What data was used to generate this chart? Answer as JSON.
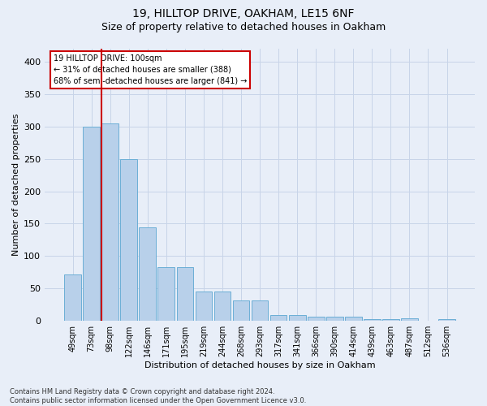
{
  "title1": "19, HILLTOP DRIVE, OAKHAM, LE15 6NF",
  "title2": "Size of property relative to detached houses in Oakham",
  "xlabel": "Distribution of detached houses by size in Oakham",
  "ylabel": "Number of detached properties",
  "footnote": "Contains HM Land Registry data © Crown copyright and database right 2024.\nContains public sector information licensed under the Open Government Licence v3.0.",
  "categories": [
    "49sqm",
    "73sqm",
    "98sqm",
    "122sqm",
    "146sqm",
    "171sqm",
    "195sqm",
    "219sqm",
    "244sqm",
    "268sqm",
    "293sqm",
    "317sqm",
    "341sqm",
    "366sqm",
    "390sqm",
    "414sqm",
    "439sqm",
    "463sqm",
    "487sqm",
    "512sqm",
    "536sqm"
  ],
  "values": [
    72,
    300,
    305,
    249,
    144,
    83,
    83,
    45,
    45,
    32,
    32,
    9,
    9,
    6,
    6,
    6,
    3,
    3,
    4,
    0,
    3
  ],
  "bar_color": "#b8d0ea",
  "bar_edge_color": "#6baed6",
  "vline_color": "#cc0000",
  "vline_x_index": 2,
  "annotation_text": "19 HILLTOP DRIVE: 100sqm\n← 31% of detached houses are smaller (388)\n68% of semi-detached houses are larger (841) →",
  "annotation_box_facecolor": "#ffffff",
  "annotation_box_edgecolor": "#cc0000",
  "grid_color": "#c8d4e8",
  "background_color": "#e8eef8",
  "ylim": [
    0,
    420
  ],
  "yticks": [
    0,
    50,
    100,
    150,
    200,
    250,
    300,
    350,
    400
  ],
  "title_fontsize": 10,
  "subtitle_fontsize": 9,
  "ylabel_fontsize": 8,
  "xlabel_fontsize": 8,
  "tick_fontsize": 7,
  "annotation_fontsize": 7,
  "footnote_fontsize": 6
}
